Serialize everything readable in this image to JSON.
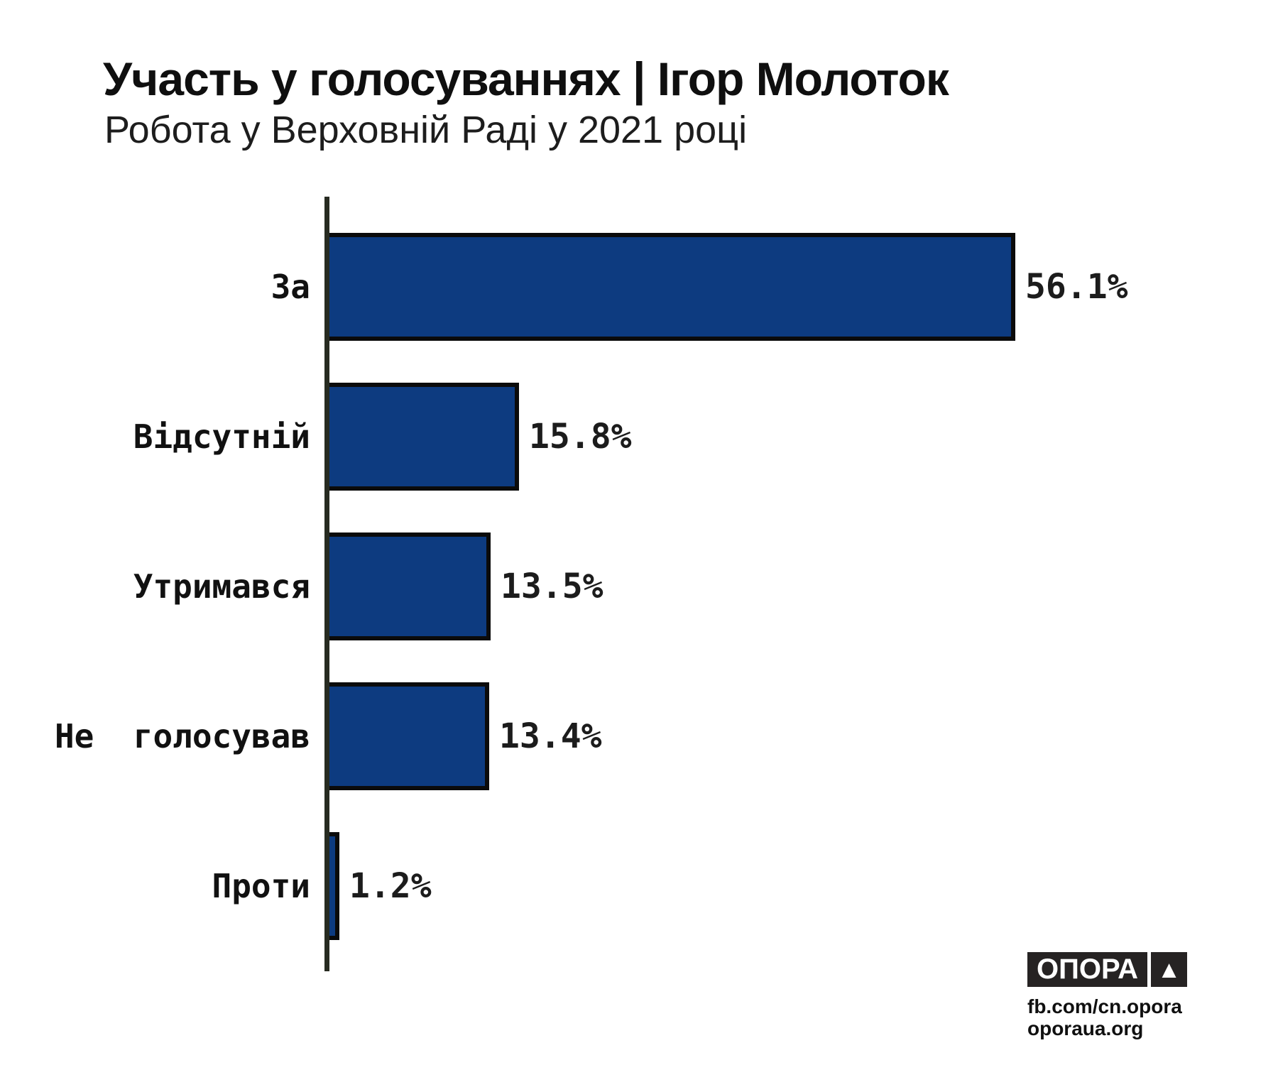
{
  "header": {
    "title": "Участь у голосуваннях | Ігор Молоток",
    "subtitle": "Робота у Верховній Раді у 2021 році"
  },
  "chart_data": {
    "type": "bar",
    "orientation": "horizontal",
    "title": "Участь у голосуваннях | Ігор Молоток",
    "subtitle": "Робота у Верховній Раді у 2021 році",
    "categories": [
      "За",
      "Відсутній",
      "Утримався",
      "Не  голосував",
      "Проти"
    ],
    "values": [
      56.1,
      15.8,
      13.5,
      13.4,
      1.2
    ],
    "value_labels": [
      "56.1%",
      "15.8%",
      "13.5%",
      "13.4%",
      "1.2%"
    ],
    "unit": "%",
    "xlim": [
      0,
      60
    ],
    "grid": false,
    "legend": false,
    "bar_color": "#0d3b80",
    "bar_border_color": "#0b0b0b",
    "axis_color": "#272b21",
    "label_color": "#111111",
    "value_color": "#1c1c1c"
  },
  "footer": {
    "logo_text": "ОПОРА",
    "triangle_char": "▲",
    "logo_bg_color": "#262323",
    "links": [
      "fb.com/cn.opora",
      "oporaua.org"
    ]
  }
}
